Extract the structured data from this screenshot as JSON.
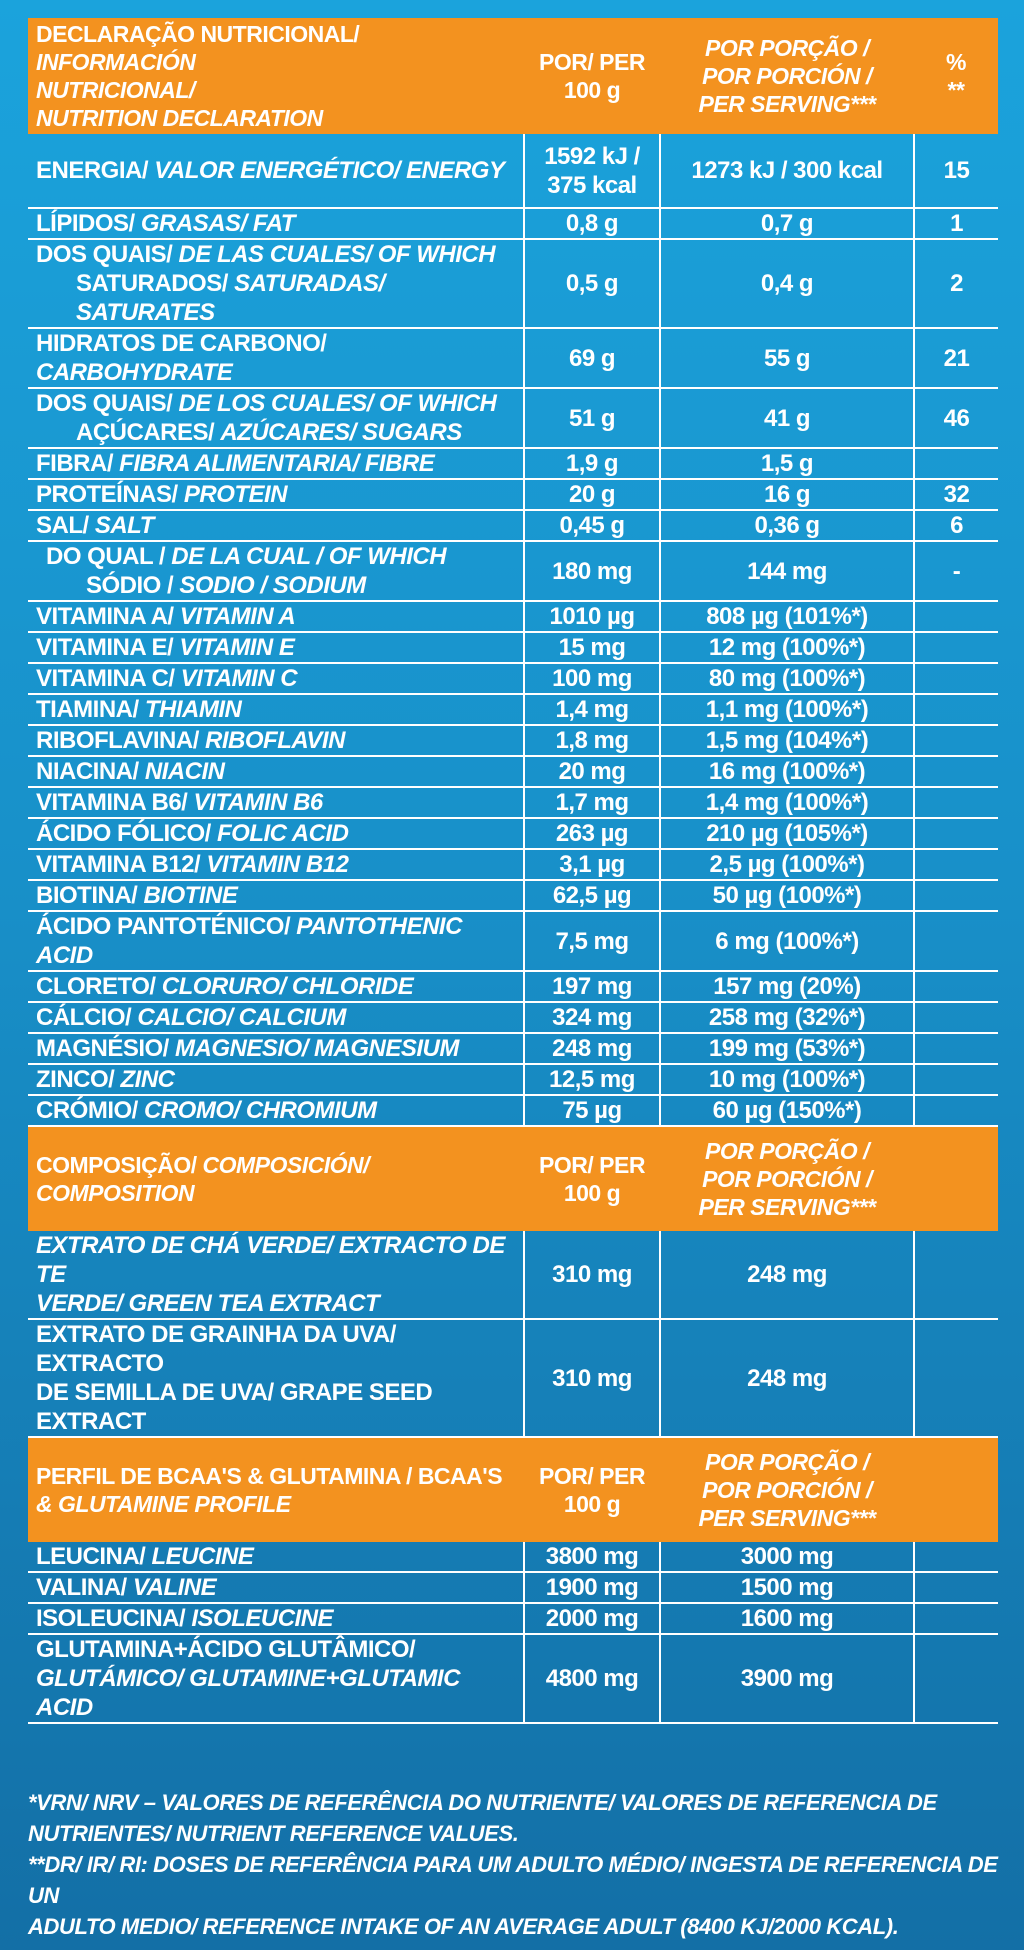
{
  "nutrition": {
    "header": {
      "label_lines": [
        "DECLARAÇÃO NUTRICIONAL/ ",
        "INFORMACIÓN",
        "NUTRICIONAL/",
        "NUTRITION DECLARATION"
      ],
      "per100_lines": [
        "POR/ PER",
        "100 g"
      ],
      "serving_lines": [
        "POR PORÇÃO /",
        "POR PORCIÓN /",
        "PER SERVING***"
      ],
      "pct_lines": [
        "%",
        "**"
      ]
    },
    "rows": [
      {
        "pt": "ENERGIA/ ",
        "es_en": "VALOR ENERGÉTICO/ ENERGY",
        "per100": "1592 kJ /\n375 kcal",
        "serving": "1273 kJ / 300 kcal",
        "pct": "15"
      },
      {
        "pt": "LÍPIDOS/ ",
        "es_en": "GRASAS/ FAT",
        "per100": "0,8 g",
        "serving": "0,7 g",
        "pct": "1"
      },
      {
        "pt": "DOS QUAIS/ ",
        "es_en": "DE LAS CUALES/ OF WHICH",
        "pt2": "SATURADOS/ ",
        "es_en2": "SATURADAS/ SATURATES",
        "per100": "0,5 g",
        "serving": "0,4 g",
        "pct": "2"
      },
      {
        "pt": "HIDRATOS DE CARBONO/ ",
        "es_en": "CARBOHYDRATE",
        "per100": "69 g",
        "serving": "55 g",
        "pct": "21"
      },
      {
        "pt": "DOS QUAIS/ ",
        "es_en": "DE LOS CUALES/ OF WHICH",
        "pt2": "AÇÚCARES/ ",
        "es_en2": "AZÚCARES/ SUGARS",
        "per100": "51 g",
        "serving": "41 g",
        "pct": "46"
      },
      {
        "pt": "FIBRA/ ",
        "es_en": "FIBRA ALIMENTARIA/ FIBRE",
        "per100": "1,9 g",
        "serving": "1,5 g",
        "pct": ""
      },
      {
        "pt": "PROTEÍNAS/ ",
        "es_en": "PROTEIN",
        "per100": "20 g",
        "serving": "16 g",
        "pct": "32"
      },
      {
        "pt": "SAL/ ",
        "es_en": "SALT",
        "per100": "0,45 g",
        "serving": "0,36 g",
        "pct": "6"
      },
      {
        "pt": "DO QUAL / ",
        "es_en": "DE LA CUAL / OF WHICH",
        "pt2": "SÓDIO / ",
        "es_en2": "SODIO / SODIUM",
        "per100": "180 mg",
        "serving": "144 mg",
        "pct": "-"
      },
      {
        "pt": "VITAMINA A/ ",
        "es_en": "VITAMIN A",
        "per100": "1010 µg",
        "serving": "808 µg (101%*)",
        "pct": ""
      },
      {
        "pt": "VITAMINA E/ ",
        "es_en": "VITAMIN E",
        "per100": "15 mg",
        "serving": "12 mg (100%*)",
        "pct": ""
      },
      {
        "pt": "VITAMINA C/ ",
        "es_en": "VITAMIN C",
        "per100": "100 mg",
        "serving": "80 mg (100%*)",
        "pct": ""
      },
      {
        "pt": "TIAMINA/ ",
        "es_en": "THIAMIN",
        "per100": "1,4 mg",
        "serving": "1,1 mg (100%*)",
        "pct": ""
      },
      {
        "pt": "RIBOFLAVINA/ ",
        "es_en": "RIBOFLAVIN",
        "per100": "1,8 mg",
        "serving": "1,5 mg (104%*)",
        "pct": ""
      },
      {
        "pt": "NIACINA/ ",
        "es_en": "NIACIN",
        "per100": "20 mg",
        "serving": "16 mg (100%*)",
        "pct": ""
      },
      {
        "pt": "VITAMINA B6/ ",
        "es_en": "VITAMIN B6",
        "per100": "1,7 mg",
        "serving": "1,4 mg (100%*)",
        "pct": ""
      },
      {
        "pt": "ÁCIDO FÓLICO/ ",
        "es_en": "FOLIC ACID",
        "per100": "263 µg",
        "serving": "210 µg (105%*)",
        "pct": ""
      },
      {
        "pt": "VITAMINA B12/ ",
        "es_en": "VITAMIN B12",
        "per100": "3,1 µg",
        "serving": "2,5 µg (100%*)",
        "pct": ""
      },
      {
        "pt": "BIOTINA/ ",
        "es_en": "BIOTINE",
        "per100": "62,5 µg",
        "serving": "50 µg (100%*)",
        "pct": ""
      },
      {
        "pt": "ÁCIDO PANTOTÉNICO/ ",
        "es_en": "PANTOTHENIC ACID",
        "per100": "7,5 mg",
        "serving": "6 mg (100%*)",
        "pct": ""
      },
      {
        "pt": "CLORETO/ ",
        "es_en": "CLORURO/ CHLORIDE",
        "per100": "197 mg",
        "serving": "157 mg (20%)",
        "pct": ""
      },
      {
        "pt": "CÁLCIO/ ",
        "es_en": "CALCIO/ CALCIUM",
        "per100": "324 mg",
        "serving": "258 mg (32%*)",
        "pct": ""
      },
      {
        "pt": "MAGNÉSIO/ ",
        "es_en": "MAGNESIO/ MAGNESIUM",
        "per100": "248 mg",
        "serving": "199 mg (53%*)",
        "pct": ""
      },
      {
        "pt": "ZINCO/ ",
        "es_en": "ZINC",
        "per100": "12,5 mg",
        "serving": "10 mg (100%*)",
        "pct": ""
      },
      {
        "pt": "CRÓMIO/ ",
        "es_en": "CROMO/ CHROMIUM",
        "per100": "75 µg",
        "serving": "60 µg (150%*)",
        "pct": ""
      }
    ]
  },
  "composition": {
    "header": {
      "pt": "COMPOSIÇÃO/ ",
      "es_en": "COMPOSICIÓN/ COMPOSITION",
      "per100_lines": [
        "POR/ PER",
        "100 g"
      ],
      "serving_lines": [
        "POR PORÇÃO /",
        "POR PORCIÓN /",
        "PER SERVING***"
      ]
    },
    "rows": [
      {
        "line1": "EXTRATO DE CHÁ VERDE/ EXTRACTO DE TE",
        "line2": "VERDE/ GREEN TEA EXTRACT",
        "per100": "310 mg",
        "serving": "248 mg"
      },
      {
        "line1": "EXTRATO DE GRAINHA DA UVA/ EXTRACTO",
        "line2": "DE SEMILLA DE UVA/ GRAPE SEED EXTRACT",
        "per100": "310 mg",
        "serving": "248 mg"
      }
    ]
  },
  "bcaa": {
    "header": {
      "line1": "PERFIL DE BCAA'S & GLUTAMINA / BCAA'S",
      "line2": "& GLUTAMINE PROFILE",
      "per100_lines": [
        "POR/ PER",
        "100 g"
      ],
      "serving_lines": [
        "POR PORÇÃO /",
        "POR PORCIÓN /",
        "PER SERVING***"
      ]
    },
    "rows": [
      {
        "pt": "LEUCINA/ ",
        "es_en": "LEUCINE",
        "per100": "3800 mg",
        "serving": "3000 mg"
      },
      {
        "pt": "VALINA/ ",
        "es_en": "VALINE",
        "per100": "1900 mg",
        "serving": "1500 mg"
      },
      {
        "pt": "ISOLEUCINA/ ",
        "es_en": "ISOLEUCINE",
        "per100": "2000 mg",
        "serving": "1600 mg"
      },
      {
        "pt": "GLUTAMINA+ÁCIDO GLUTÂMICO/",
        "es_en": "",
        "pt2": "",
        "es_en2": "GLUTÁMICO/ GLUTAMINE+GLUTAMIC ACID",
        "per100": "4800 mg",
        "serving": "3900 mg"
      }
    ]
  },
  "footnotes": {
    "line1": "*VRN/ NRV – VALORES DE REFERÊNCIA DO NUTRIENTE/ VALORES DE REFERENCIA DE",
    "line2": "NUTRIENTES/ NUTRIENT REFERENCE VALUES.",
    "line3": "**DR/ IR/ RI: DOSES DE REFERÊNCIA PARA UM ADULTO MÉDIO/ INGESTA DE REFERENCIA DE UN",
    "line4": "ADULTO MEDIO/ REFERENCE INTAKE OF AN AVERAGE ADULT (8400 KJ/2000 KCAL)."
  }
}
